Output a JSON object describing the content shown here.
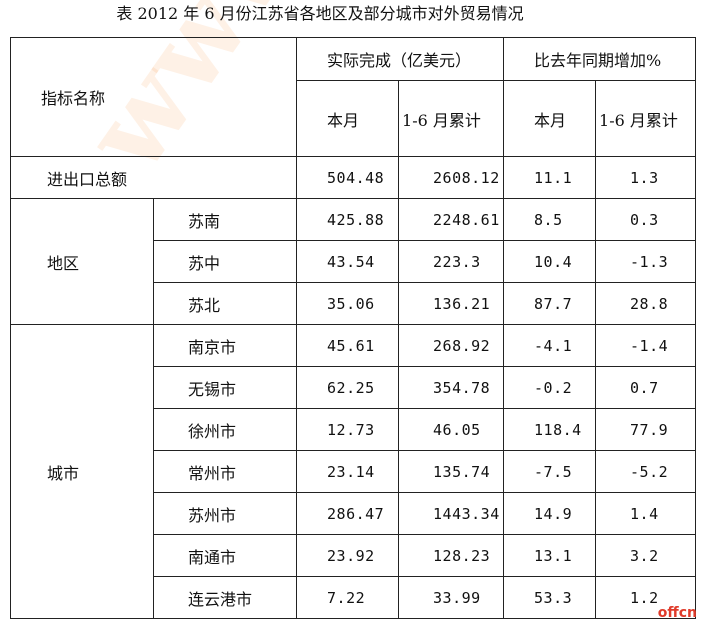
{
  "title": "表  2012 年 6 月份江苏省各地区及部分城市对外贸易情况",
  "header": {
    "indicator": "指标名称",
    "actual_group": "实际完成（亿美元）",
    "growth_group": "比去年同期增加%",
    "month": "本月",
    "cumulative": "1-6 月累计",
    "month2": "本月",
    "cumulative2": "1-6 月累计"
  },
  "total": {
    "label": "进出口总额",
    "month": "504.48",
    "cum": "2608.12",
    "g_month": "11.1",
    "g_cum": "1.3"
  },
  "region_group": "地区",
  "regions": [
    {
      "label": "苏南",
      "month": "425.88",
      "cum": "2248.61",
      "g_month": "8.5",
      "g_cum": "0.3"
    },
    {
      "label": "苏中",
      "month": "43.54",
      "cum": "223.3",
      "g_month": "10.4",
      "g_cum": "-1.3"
    },
    {
      "label": "苏北",
      "month": "35.06",
      "cum": "136.21",
      "g_month": "87.7",
      "g_cum": "28.8"
    }
  ],
  "city_group": "城市",
  "cities": [
    {
      "label": "南京市",
      "month": "45.61",
      "cum": "268.92",
      "g_month": "-4.1",
      "g_cum": "-1.4"
    },
    {
      "label": "无锡市",
      "month": "62.25",
      "cum": "354.78",
      "g_month": "-0.2",
      "g_cum": "0.7"
    },
    {
      "label": "徐州市",
      "month": "12.73",
      "cum": "46.05",
      "g_month": "118.4",
      "g_cum": "77.9"
    },
    {
      "label": "常州市",
      "month": "23.14",
      "cum": "135.74",
      "g_month": "-7.5",
      "g_cum": "-5.2"
    },
    {
      "label": "苏州市",
      "month": "286.47",
      "cum": "1443.34",
      "g_month": "14.9",
      "g_cum": "1.4"
    },
    {
      "label": "南通市",
      "month": "23.92",
      "cum": "128.23",
      "g_month": "13.1",
      "g_cum": "3.2"
    },
    {
      "label": "连云港市",
      "month": "7.22",
      "cum": "33.99",
      "g_month": "53.3",
      "g_cum": "1.2"
    }
  ],
  "watermark": "www.offcn.com",
  "corner_mark": "offcn"
}
